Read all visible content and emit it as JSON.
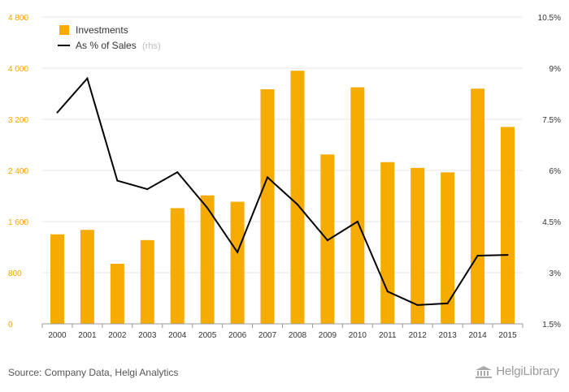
{
  "chart_data": {
    "type": "bar",
    "categories": [
      "2000",
      "2001",
      "2002",
      "2003",
      "2004",
      "2005",
      "2006",
      "2007",
      "2008",
      "2009",
      "2010",
      "2011",
      "2012",
      "2013",
      "2014",
      "2015"
    ],
    "series": [
      {
        "name": "Investments",
        "type": "bar",
        "axis": "left",
        "color": "#f5ab00",
        "values": [
          1400,
          1470,
          940,
          1310,
          1810,
          2010,
          1910,
          3670,
          3960,
          2650,
          3700,
          2530,
          2440,
          2370,
          3680,
          3080
        ]
      },
      {
        "name": "As % of Sales",
        "note": "(rhs)",
        "type": "line",
        "axis": "right",
        "color": "#000000",
        "values": [
          7.7,
          8.7,
          5.7,
          5.45,
          5.95,
          4.9,
          3.6,
          5.8,
          5.0,
          3.95,
          4.5,
          2.45,
          2.05,
          2.1,
          3.5,
          3.52
        ]
      }
    ],
    "y_left": {
      "ylim": [
        0,
        4800
      ],
      "ticks": [
        0,
        800,
        1600,
        2400,
        3200,
        4000,
        4800
      ],
      "tick_labels": [
        "0",
        "800",
        "1 600",
        "2 400",
        "3 200",
        "4 000",
        "4 800"
      ]
    },
    "y_right": {
      "ylim": [
        1.5,
        10.5
      ],
      "ticks": [
        1.5,
        3,
        4.5,
        6,
        7.5,
        9,
        10.5
      ],
      "tick_labels": [
        "1.5%",
        "3%",
        "4.5%",
        "6%",
        "7.5%",
        "9%",
        "10.5%"
      ]
    },
    "grid": true,
    "legend_position": "top-left"
  },
  "colors": {
    "bar": "#f5ab00",
    "line": "#000000",
    "grid": "#e6e6e6",
    "left_ticks": "#f0a500"
  },
  "footer": {
    "source": "Source: Company Data, Helgi Analytics",
    "logo_text": "HelgiLibrary"
  },
  "icons": {
    "logo": "library-building-icon"
  }
}
